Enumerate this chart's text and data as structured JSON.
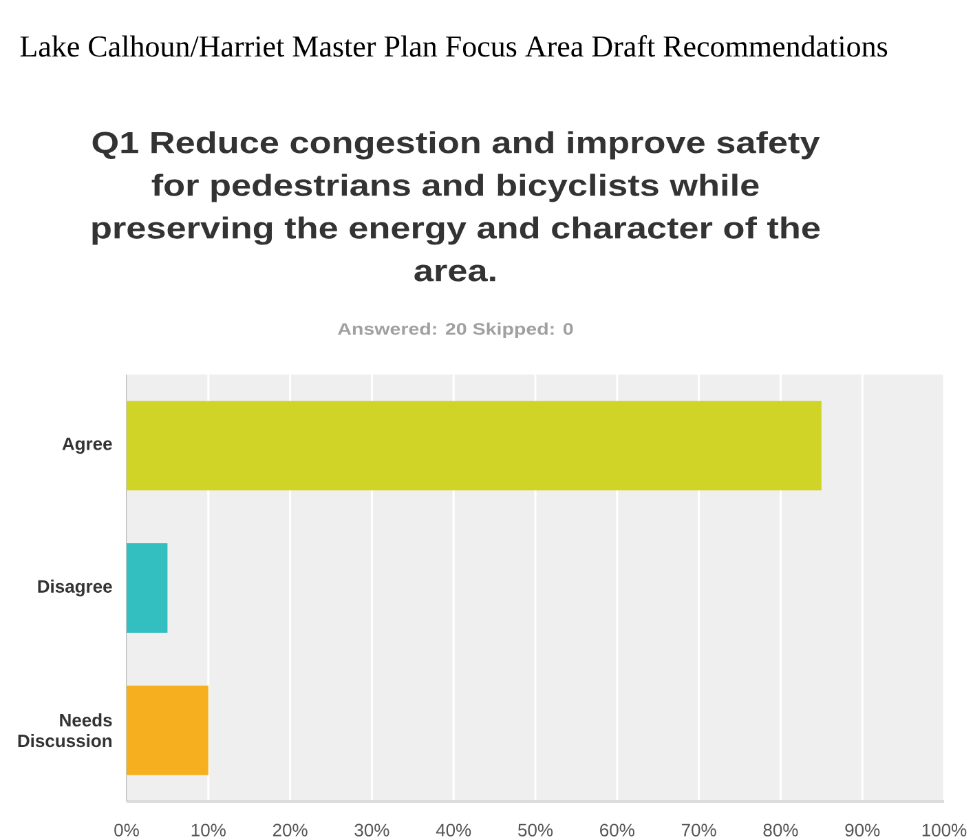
{
  "chart_data": {
    "type": "bar",
    "orientation": "horizontal",
    "title": "Q1 Reduce congestion and improve safety for pedestrians and bicyclists while preserving the energy and character of the area.",
    "subtitle": "Answered: 20 Skipped: 0",
    "annotations": [
      "Lake Calhoun/Harriet Master Plan Focus Area Draft Recommendations"
    ],
    "categories": [
      "Agree",
      "Disagree",
      "Needs Discussion"
    ],
    "values": [
      85,
      5,
      10
    ],
    "colors": [
      "#cfd427",
      "#33bec0",
      "#f6b01f"
    ],
    "xlim": [
      0,
      100
    ],
    "xticks": [
      {
        "value": 0,
        "label": "0%"
      },
      {
        "value": 10,
        "label": "10%"
      },
      {
        "value": 20,
        "label": "20%"
      },
      {
        "value": 30,
        "label": "30%"
      },
      {
        "value": 40,
        "label": "40%"
      },
      {
        "value": 50,
        "label": "50%"
      },
      {
        "value": 60,
        "label": "60%"
      },
      {
        "value": 70,
        "label": "70%"
      },
      {
        "value": 80,
        "label": "80%"
      },
      {
        "value": 90,
        "label": "90%"
      },
      {
        "value": 100,
        "label": "100%"
      }
    ],
    "grid": "x"
  }
}
